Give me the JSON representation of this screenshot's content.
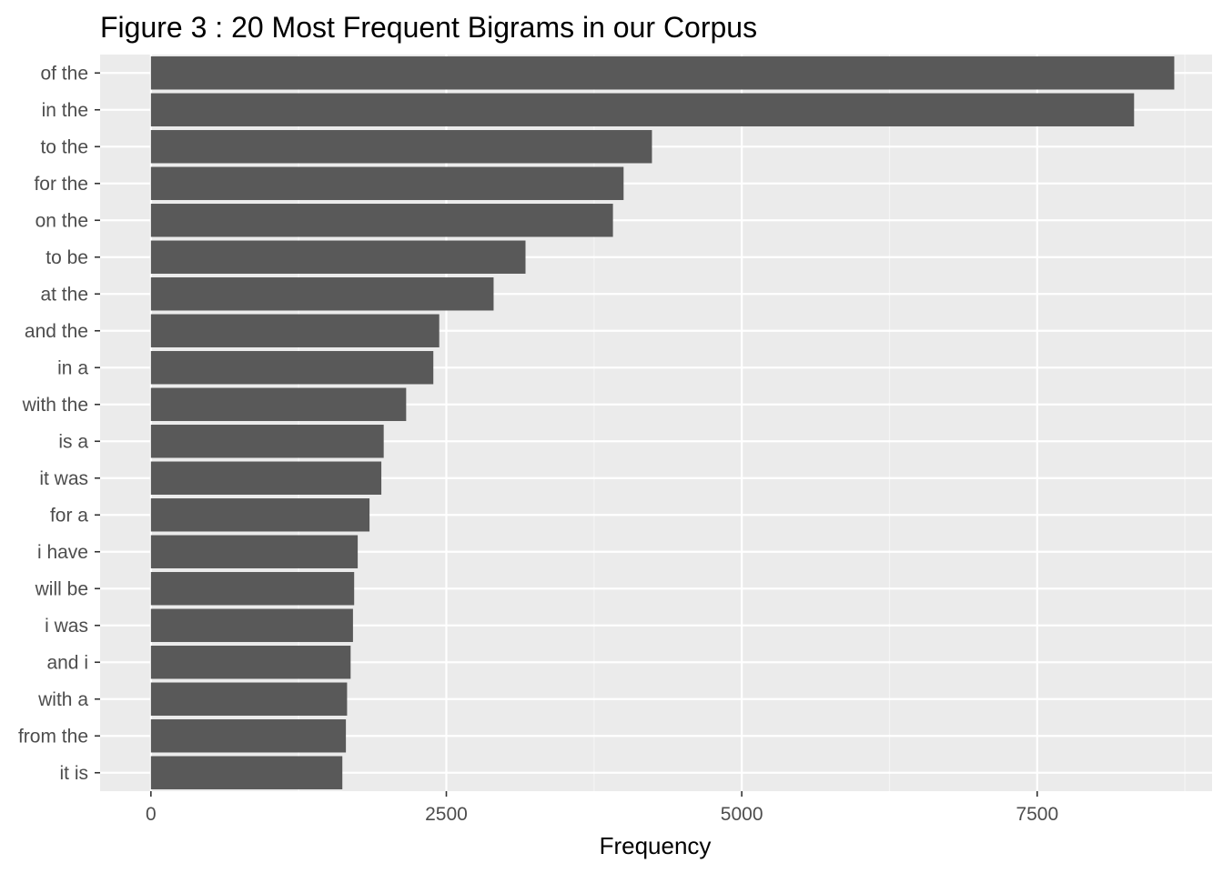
{
  "chart_data": {
    "type": "bar",
    "orientation": "horizontal",
    "title": "Figure  3 : 20 Most Frequent Bigrams in our Corpus",
    "xlabel": "Frequency",
    "ylabel": "",
    "categories": [
      "of the",
      "in the",
      "to the",
      "for the",
      "on the",
      "to be",
      "at the",
      "and the",
      "in a",
      "with the",
      "is a",
      "it was",
      "for a",
      "i have",
      "will be",
      "i was",
      "and i",
      "with a",
      "from the",
      "it is"
    ],
    "values": [
      8660,
      8320,
      4240,
      4000,
      3910,
      3170,
      2900,
      2440,
      2390,
      2160,
      1970,
      1950,
      1850,
      1750,
      1720,
      1710,
      1690,
      1660,
      1650,
      1620
    ],
    "xlim": [
      -430,
      8980
    ],
    "x_ticks": [
      0,
      2500,
      5000,
      7500
    ],
    "x_tick_labels": [
      "0",
      "2500",
      "5000",
      "7500"
    ],
    "grid": true,
    "legend": "none",
    "colors": {
      "bar": "#595959",
      "panel": "#ebebeb",
      "grid_major": "#ffffff",
      "grid_minor": "#f5f5f5",
      "tick_text": "#4d4d4d",
      "tick_mark": "#333333"
    }
  }
}
